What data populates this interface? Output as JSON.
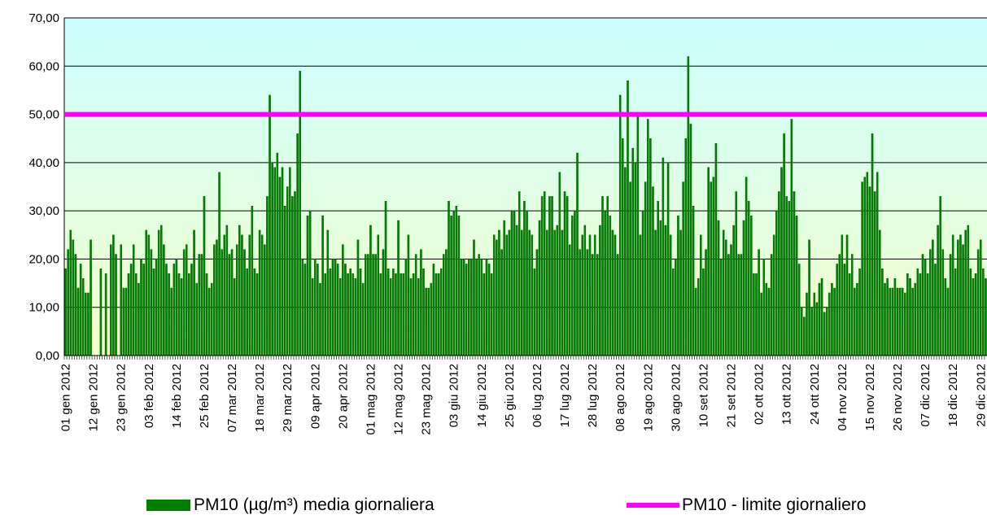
{
  "chart_data": {
    "type": "bar",
    "categories": [
      "01 gen 2012",
      null,
      null,
      null,
      null,
      null,
      null,
      null,
      null,
      null,
      null,
      "12 gen 2012",
      null,
      null,
      null,
      null,
      null,
      null,
      null,
      null,
      null,
      null,
      "23 gen 2012",
      null,
      null,
      null,
      null,
      null,
      null,
      null,
      null,
      null,
      null,
      "03 feb 2012",
      null,
      null,
      null,
      null,
      null,
      null,
      null,
      null,
      null,
      null,
      "14 feb 2012",
      null,
      null,
      null,
      null,
      null,
      null,
      null,
      null,
      null,
      null,
      "25 feb 2012",
      null,
      null,
      null,
      null,
      null,
      null,
      null,
      null,
      null,
      null,
      "07 mar 2012",
      null,
      null,
      null,
      null,
      null,
      null,
      null,
      null,
      null,
      null,
      "18 mar 2012",
      null,
      null,
      null,
      null,
      null,
      null,
      null,
      null,
      null,
      null,
      "29 mar 2012",
      null,
      null,
      null,
      null,
      null,
      null,
      null,
      null,
      null,
      null,
      "09 apr 2012",
      null,
      null,
      null,
      null,
      null,
      null,
      null,
      null,
      null,
      null,
      "20 apr 2012",
      null,
      null,
      null,
      null,
      null,
      null,
      null,
      null,
      null,
      null,
      "01 mag 2012",
      null,
      null,
      null,
      null,
      null,
      null,
      null,
      null,
      null,
      null,
      "12 mag 2012",
      null,
      null,
      null,
      null,
      null,
      null,
      null,
      null,
      null,
      null,
      "23 mag 2012",
      null,
      null,
      null,
      null,
      null,
      null,
      null,
      null,
      null,
      null,
      "03 giu 2012",
      null,
      null,
      null,
      null,
      null,
      null,
      null,
      null,
      null,
      null,
      "14 giu 2012",
      null,
      null,
      null,
      null,
      null,
      null,
      null,
      null,
      null,
      null,
      "25 giu 2012",
      null,
      null,
      null,
      null,
      null,
      null,
      null,
      null,
      null,
      null,
      "06 lug 2012",
      null,
      null,
      null,
      null,
      null,
      null,
      null,
      null,
      null,
      null,
      "17 lug 2012",
      null,
      null,
      null,
      null,
      null,
      null,
      null,
      null,
      null,
      null,
      "28 lug 2012",
      null,
      null,
      null,
      null,
      null,
      null,
      null,
      null,
      null,
      null,
      "08 ago 2012",
      null,
      null,
      null,
      null,
      null,
      null,
      null,
      null,
      null,
      null,
      "19 ago 2012",
      null,
      null,
      null,
      null,
      null,
      null,
      null,
      null,
      null,
      null,
      "30 ago 2012",
      null,
      null,
      null,
      null,
      null,
      null,
      null,
      null,
      null,
      null,
      "10 set 2012",
      null,
      null,
      null,
      null,
      null,
      null,
      null,
      null,
      null,
      null,
      "21 set 2012",
      null,
      null,
      null,
      null,
      null,
      null,
      null,
      null,
      null,
      null,
      "02 ott 2012",
      null,
      null,
      null,
      null,
      null,
      null,
      null,
      null,
      null,
      null,
      "13 ott 2012",
      null,
      null,
      null,
      null,
      null,
      null,
      null,
      null,
      null,
      null,
      "24 ott 2012",
      null,
      null,
      null,
      null,
      null,
      null,
      null,
      null,
      null,
      null,
      "04 nov 2012",
      null,
      null,
      null,
      null,
      null,
      null,
      null,
      null,
      null,
      null,
      "15 nov 2012",
      null,
      null,
      null,
      null,
      null,
      null,
      null,
      null,
      null,
      null,
      "26 nov 2012",
      null,
      null,
      null,
      null,
      null,
      null,
      null,
      null,
      null,
      null,
      "07 dic 2012",
      null,
      null,
      null,
      null,
      null,
      null,
      null,
      null,
      null,
      null,
      "18 dic 2012",
      null,
      null,
      null,
      null,
      null,
      null,
      null,
      null,
      null,
      null,
      "29 dic 2012",
      null,
      null
    ],
    "series": [
      {
        "name": "PM10 (µg/m³) media giornaliera",
        "color": "#008000",
        "values": [
          18,
          22,
          26,
          24,
          21,
          14,
          19,
          16,
          13,
          13,
          24,
          null,
          null,
          null,
          18,
          null,
          17,
          null,
          23,
          25,
          21,
          null,
          23,
          14,
          14,
          17,
          19,
          23,
          17,
          15,
          20,
          19,
          26,
          25,
          22,
          18,
          20,
          26,
          27,
          23,
          19,
          17,
          14,
          19,
          20,
          17,
          16,
          22,
          23,
          17,
          19,
          26,
          15,
          21,
          21,
          33,
          17,
          14,
          15,
          23,
          24,
          38,
          22,
          25,
          27,
          21,
          22,
          16,
          23,
          27,
          25,
          22,
          18,
          25,
          31,
          18,
          17,
          26,
          25,
          23,
          33,
          54,
          40,
          39,
          42,
          37,
          39,
          31,
          35,
          39,
          33,
          34,
          46,
          59,
          20,
          19,
          29,
          30,
          16,
          20,
          19,
          15,
          29,
          17,
          26,
          18,
          20,
          20,
          19,
          16,
          23,
          19,
          17,
          18,
          17,
          16,
          24,
          18,
          15,
          21,
          21,
          27,
          21,
          21,
          25,
          17,
          22,
          32,
          18,
          16,
          18,
          17,
          28,
          17,
          17,
          20,
          25,
          16,
          17,
          21,
          16,
          22,
          18,
          14,
          14,
          15,
          19,
          17,
          17,
          18,
          21,
          22,
          32,
          29,
          30,
          31,
          29,
          20,
          20,
          19,
          20,
          20,
          24,
          20,
          21,
          20,
          17,
          20,
          19,
          17,
          25,
          24,
          26,
          22,
          28,
          25,
          26,
          30,
          30,
          27,
          34,
          26,
          32,
          30,
          26,
          25,
          18,
          22,
          28,
          33,
          34,
          26,
          33,
          33,
          26,
          27,
          38,
          26,
          34,
          33,
          23,
          29,
          30,
          42,
          22,
          25,
          27,
          22,
          25,
          21,
          25,
          21,
          27,
          33,
          30,
          33,
          29,
          26,
          25,
          21,
          54,
          45,
          39,
          57,
          36,
          43,
          40,
          50,
          25,
          30,
          36,
          49,
          45,
          35,
          26,
          32,
          28,
          41,
          27,
          40,
          25,
          18,
          20,
          29,
          26,
          36,
          45,
          62,
          48,
          31,
          14,
          16,
          25,
          18,
          22,
          39,
          36,
          37,
          44,
          28,
          20,
          26,
          24,
          21,
          23,
          27,
          34,
          21,
          21,
          28,
          37,
          32,
          29,
          17,
          17,
          22,
          13,
          20,
          15,
          14,
          21,
          25,
          30,
          34,
          39,
          46,
          33,
          32,
          49,
          34,
          29,
          19,
          10,
          8,
          13,
          24,
          10,
          13,
          11,
          15,
          16,
          9,
          10,
          13,
          15,
          14,
          19,
          21,
          25,
          19,
          25,
          17,
          21,
          14,
          15,
          18,
          36,
          37,
          38,
          35,
          46,
          34,
          38,
          26,
          18,
          15,
          16,
          14,
          14,
          16,
          14,
          14,
          14,
          13,
          17,
          16,
          14,
          15,
          18,
          17,
          21,
          20,
          17,
          22,
          24,
          19,
          27,
          33,
          22,
          16,
          14,
          21,
          25,
          18,
          24,
          25,
          23,
          26,
          27,
          18,
          16,
          17,
          22,
          24,
          18,
          16
        ]
      }
    ],
    "reference_line": {
      "name": "PM10 - limite giornaliero",
      "value": 50,
      "color": "#ff00ff"
    },
    "ylim": [
      0,
      70
    ],
    "yticks": [
      {
        "value": 0,
        "label": "0,00"
      },
      {
        "value": 10,
        "label": "10,00"
      },
      {
        "value": 20,
        "label": "20,00"
      },
      {
        "value": 30,
        "label": "30,00"
      },
      {
        "value": 40,
        "label": "40,00"
      },
      {
        "value": 50,
        "label": "50,00"
      },
      {
        "value": 60,
        "label": "60,00"
      },
      {
        "value": 70,
        "label": "70,00"
      }
    ],
    "grid": true
  }
}
